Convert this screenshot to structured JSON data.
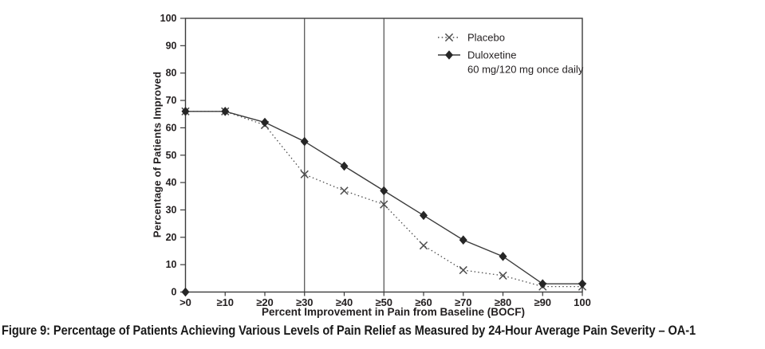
{
  "figure": {
    "caption": "Figure 9: Percentage of Patients Achieving Various Levels of Pain Relief as Measured by 24-Hour Average Pain Severity – OA-1"
  },
  "colors": {
    "background": "#ffffff",
    "axis_stroke": "#3b3b3b",
    "text": "#231f20",
    "placebo_line": "#4d4d4d",
    "duloxetine_line": "#3b3b3b",
    "marker_fill": "#262626"
  },
  "chart_data": {
    "type": "line",
    "title": "",
    "xlabel": "Percent Improvement in Pain from Baseline (BOCF)",
    "ylabel": "Percentage of Patients Improved",
    "categories": [
      ">0",
      "≥10",
      "≥20",
      "≥30",
      "≥40",
      "≥50",
      "≥60",
      "≥70",
      "≥80",
      "≥90",
      "100"
    ],
    "ylim": [
      0,
      100
    ],
    "ytick_step": 10,
    "grid": false,
    "reference_lines_at": [
      "≥30",
      "≥50"
    ],
    "origin_marker": true,
    "legend_position": "top-right-inside",
    "series": [
      {
        "name": "Placebo",
        "values": [
          66,
          66,
          61,
          43,
          37,
          32,
          17,
          8,
          6,
          2,
          2
        ],
        "marker": "x",
        "line_style": "dotted"
      },
      {
        "name": "Duloxetine",
        "label_line2": "60 mg/120 mg once daily",
        "values": [
          66,
          66,
          62,
          55,
          46,
          37,
          28,
          19,
          13,
          3,
          3
        ],
        "marker": "diamond",
        "line_style": "solid"
      }
    ]
  }
}
